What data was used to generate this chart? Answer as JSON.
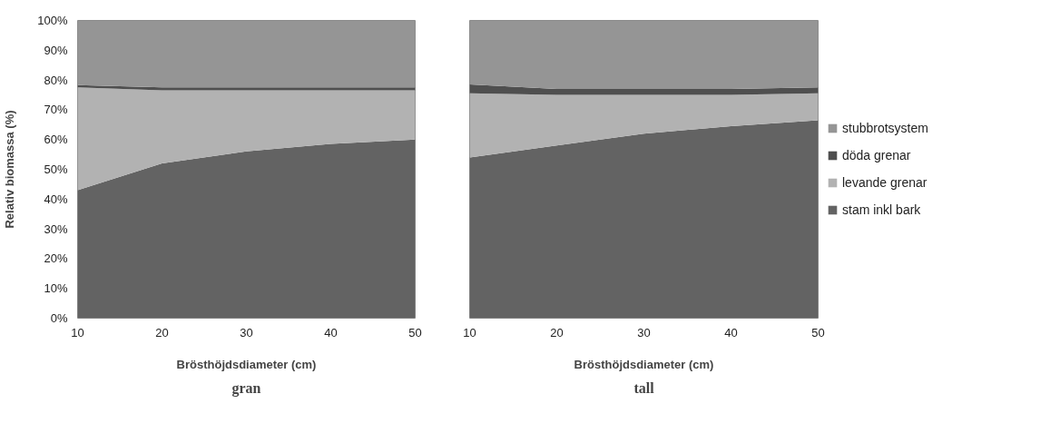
{
  "chart_data": [
    {
      "type": "area",
      "stacked": true,
      "title": "gran",
      "xlabel": "Brösthöjdsdiameter (cm)",
      "ylabel": "Relativ biomassa (%)",
      "x": [
        10,
        20,
        30,
        40,
        50
      ],
      "xlim": [
        10,
        50
      ],
      "xticks": [
        10,
        20,
        30,
        40,
        50
      ],
      "ylim": [
        0,
        100
      ],
      "yticks": [
        {
          "value": 0,
          "label": "0%"
        },
        {
          "value": 10,
          "label": "10%"
        },
        {
          "value": 20,
          "label": "20%"
        },
        {
          "value": 30,
          "label": "30%"
        },
        {
          "value": 40,
          "label": "40%"
        },
        {
          "value": 50,
          "label": "50%"
        },
        {
          "value": 60,
          "label": "60%"
        },
        {
          "value": 70,
          "label": "70%"
        },
        {
          "value": 80,
          "label": "80%"
        },
        {
          "value": 90,
          "label": "90%"
        },
        {
          "value": 100,
          "label": "100%"
        }
      ],
      "grid": false,
      "series": [
        {
          "color": "#636363",
          "values": [
            43,
            52,
            56,
            58.5,
            60
          ]
        },
        {
          "color": "#b2b2b2",
          "values": [
            34.5,
            24.5,
            20.5,
            18,
            16.5
          ]
        },
        {
          "color": "#4f4f4f",
          "values": [
            0.8,
            1,
            1,
            1,
            1
          ]
        },
        {
          "color": "#959595",
          "values": [
            21.7,
            22.5,
            22.5,
            22.5,
            22.5
          ]
        }
      ]
    },
    {
      "type": "area",
      "stacked": true,
      "title": "tall",
      "xlabel": "Brösthöjdsdiameter (cm)",
      "x": [
        10,
        20,
        30,
        40,
        50
      ],
      "xlim": [
        10,
        50
      ],
      "xticks": [
        10,
        20,
        30,
        40,
        50
      ],
      "ylim": [
        0,
        100
      ],
      "tick_labels": "x",
      "grid": false,
      "legend": "right",
      "series": [
        {
          "name": "stam inkl bark",
          "color": "#636363",
          "values": [
            54,
            58,
            62,
            64.5,
            66.5
          ]
        },
        {
          "name": "levande grenar",
          "color": "#b2b2b2",
          "values": [
            21.5,
            17,
            13,
            10.5,
            9
          ]
        },
        {
          "name": "döda grenar",
          "color": "#4f4f4f",
          "values": [
            3,
            2,
            2,
            2,
            2
          ]
        },
        {
          "name": "stubbrotsystem",
          "color": "#959595",
          "values": [
            21.5,
            23,
            23,
            23,
            22.5
          ]
        }
      ]
    }
  ]
}
